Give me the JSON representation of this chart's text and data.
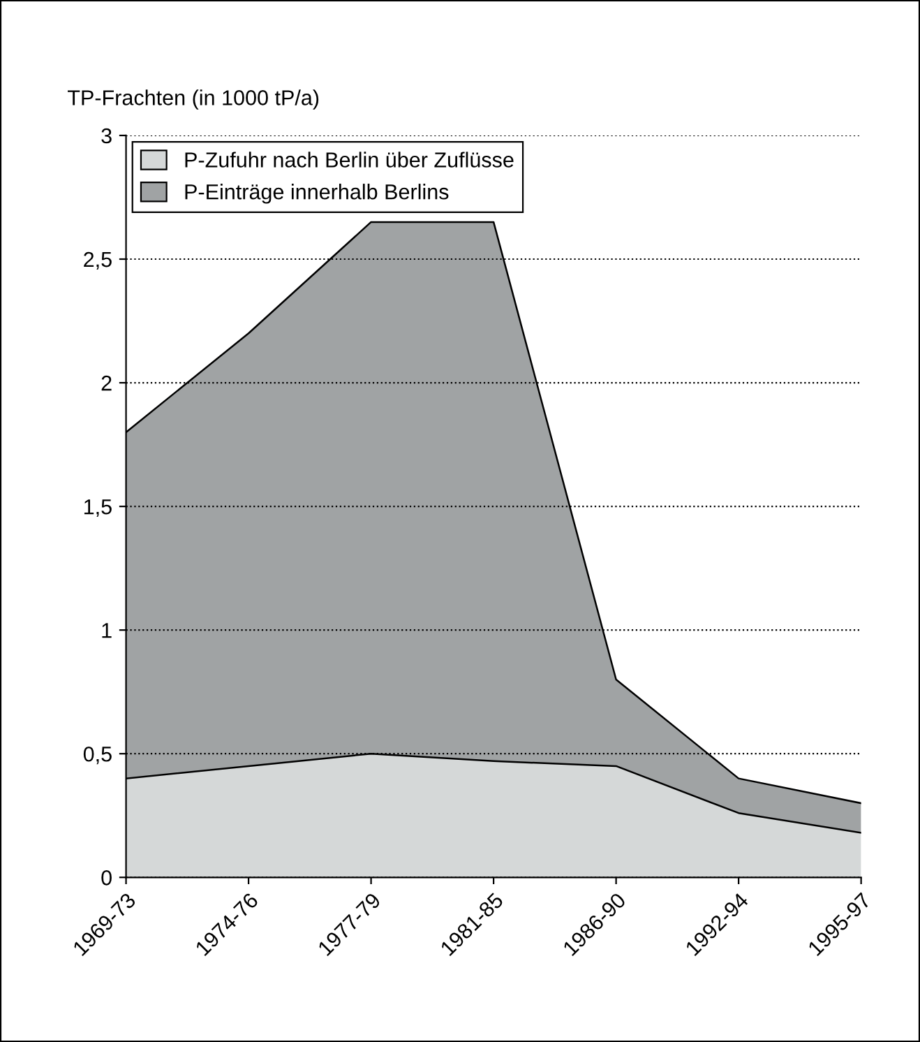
{
  "chart_data": {
    "type": "area",
    "stacked": true,
    "ylabel": "TP-Frachten (in 1000 tP/a)",
    "categories": [
      "1969-73",
      "1974-76",
      "1977-79",
      "1981-85",
      "1986-90",
      "1992-94",
      "1995-97"
    ],
    "series": [
      {
        "name": "P-Zufuhr nach Berlin über Zuflüsse",
        "color": "#d5d8d8",
        "values": [
          0.4,
          0.45,
          0.5,
          0.47,
          0.45,
          0.26,
          0.18
        ]
      },
      {
        "name": "P-Einträge innerhalb Berlins",
        "color": "#a0a3a4",
        "values": [
          1.4,
          1.75,
          2.15,
          2.18,
          0.35,
          0.14,
          0.12
        ]
      }
    ],
    "ylim": [
      0,
      3
    ],
    "yticks": [
      0,
      {
        "value": 0.5,
        "label": "0,5"
      },
      1,
      {
        "value": 1.5,
        "label": "1,5"
      },
      2,
      {
        "value": 2.5,
        "label": "2,5"
      },
      3
    ],
    "grid": "y",
    "legend": "top left"
  }
}
